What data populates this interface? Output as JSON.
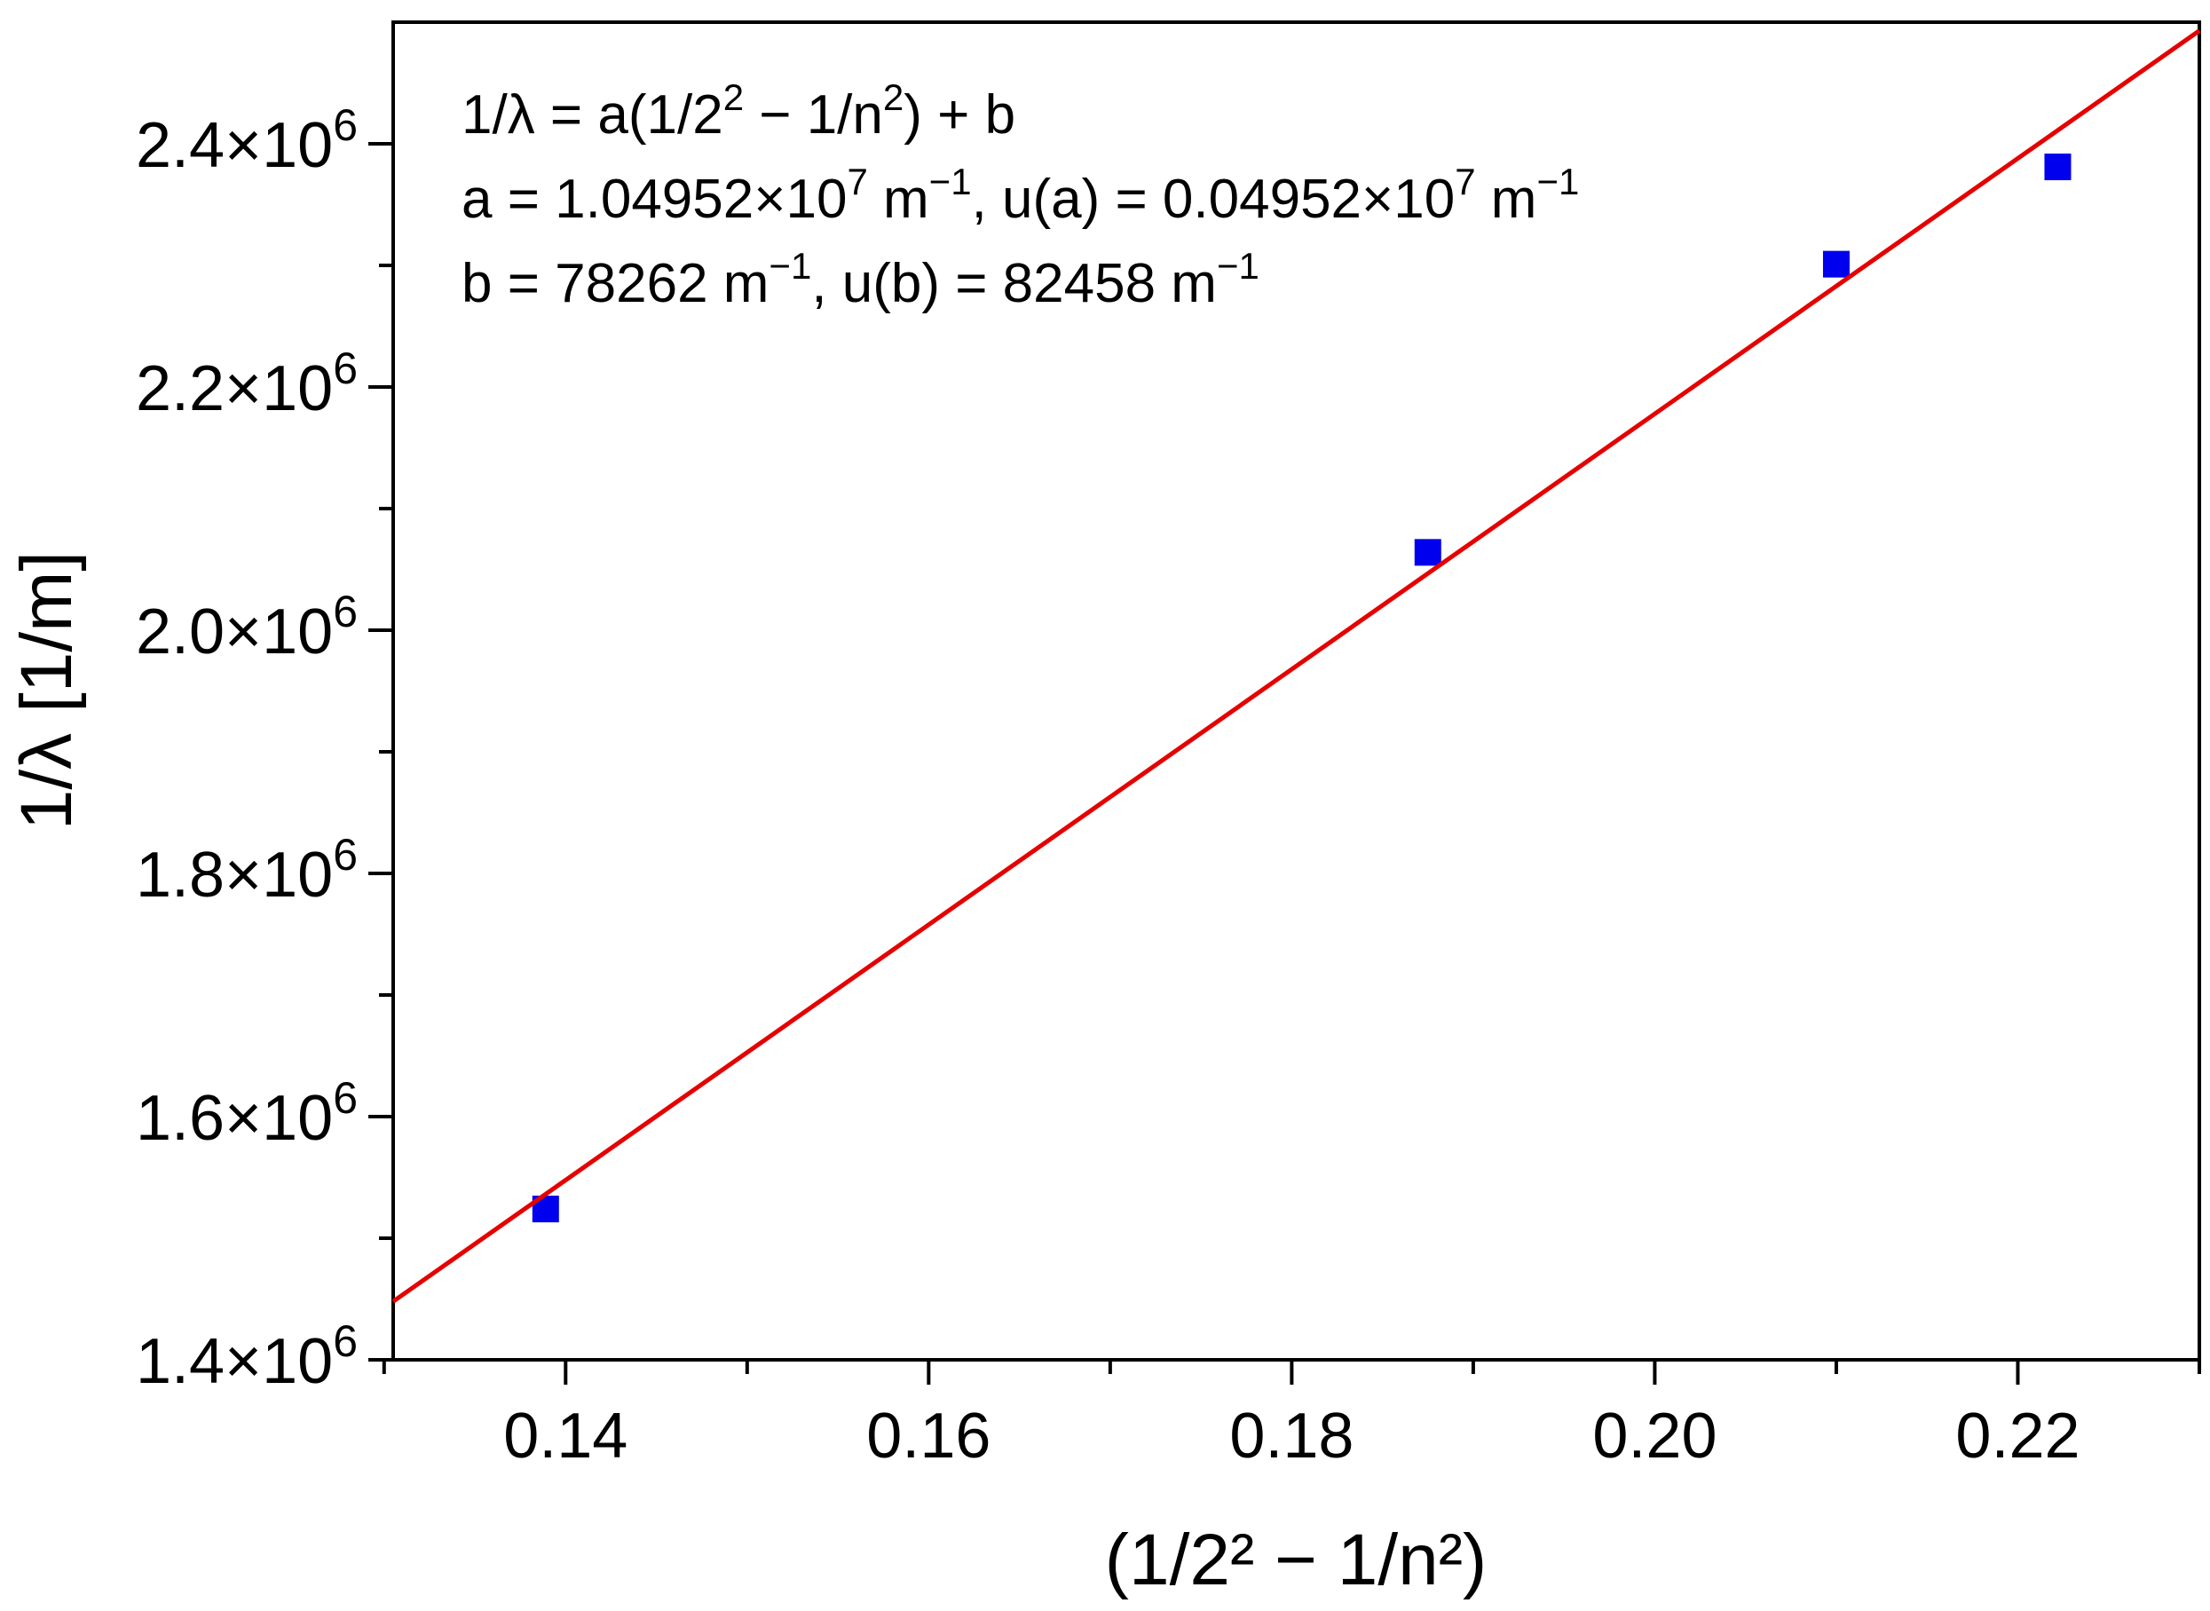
{
  "chart_data": {
    "type": "scatter",
    "xlabel": "(1/2² − 1/n²)",
    "ylabel": "1/λ [1/m]",
    "xlim": [
      0.1305,
      0.23
    ],
    "ylim": [
      1400000,
      2500000
    ],
    "x_ticks": [
      0.14,
      0.16,
      0.18,
      0.2,
      0.22
    ],
    "x_tick_labels": [
      "0.14",
      "0.16",
      "0.18",
      "0.20",
      "0.22"
    ],
    "x_minor_ticks": [
      0.13,
      0.15,
      0.17,
      0.19,
      0.21,
      0.23
    ],
    "y_ticks": [
      1400000,
      1600000,
      1800000,
      2000000,
      2200000,
      2400000
    ],
    "y_tick_labels": [
      {
        "mantissa": "1.4×10",
        "exp": "6"
      },
      {
        "mantissa": "1.6×10",
        "exp": "6"
      },
      {
        "mantissa": "1.8×10",
        "exp": "6"
      },
      {
        "mantissa": "2.0×10",
        "exp": "6"
      },
      {
        "mantissa": "2.2×10",
        "exp": "6"
      },
      {
        "mantissa": "2.4×10",
        "exp": "6"
      }
    ],
    "y_minor_ticks": [
      1500000,
      1700000,
      1900000,
      2100000,
      2300000
    ],
    "grid": false,
    "series": [
      {
        "type": "scatter",
        "marker": "square",
        "color": "#0000ee",
        "x": [
          0.1389,
          0.1875,
          0.21,
          0.2222
        ],
        "y": [
          1524000,
          2064000,
          2301000,
          2381000
        ]
      },
      {
        "type": "line",
        "color": "#e60000",
        "x": [
          0.1305,
          0.23
        ],
        "y": [
          1448000,
          2493000
        ]
      }
    ],
    "annotations": [
      {
        "parts": [
          {
            "t": "1/λ = a(1/2"
          },
          {
            "t": "2",
            "sup": true
          },
          {
            "t": " − 1/n"
          },
          {
            "t": "2",
            "sup": true
          },
          {
            "t": ") + b"
          }
        ]
      },
      {
        "parts": [
          {
            "t": "a = 1.04952×10"
          },
          {
            "t": "7",
            "sup": true
          },
          {
            "t": " m"
          },
          {
            "t": "−1",
            "sup": true
          },
          {
            "t": ", u(a) = 0.04952×10"
          },
          {
            "t": "7",
            "sup": true
          },
          {
            "t": " m"
          },
          {
            "t": "−1",
            "sup": true
          }
        ]
      },
      {
        "parts": [
          {
            "t": "b = 78262 m"
          },
          {
            "t": "−1",
            "sup": true
          },
          {
            "t": ", u(b) = 82458 m"
          },
          {
            "t": "−1",
            "sup": true
          }
        ]
      }
    ]
  }
}
